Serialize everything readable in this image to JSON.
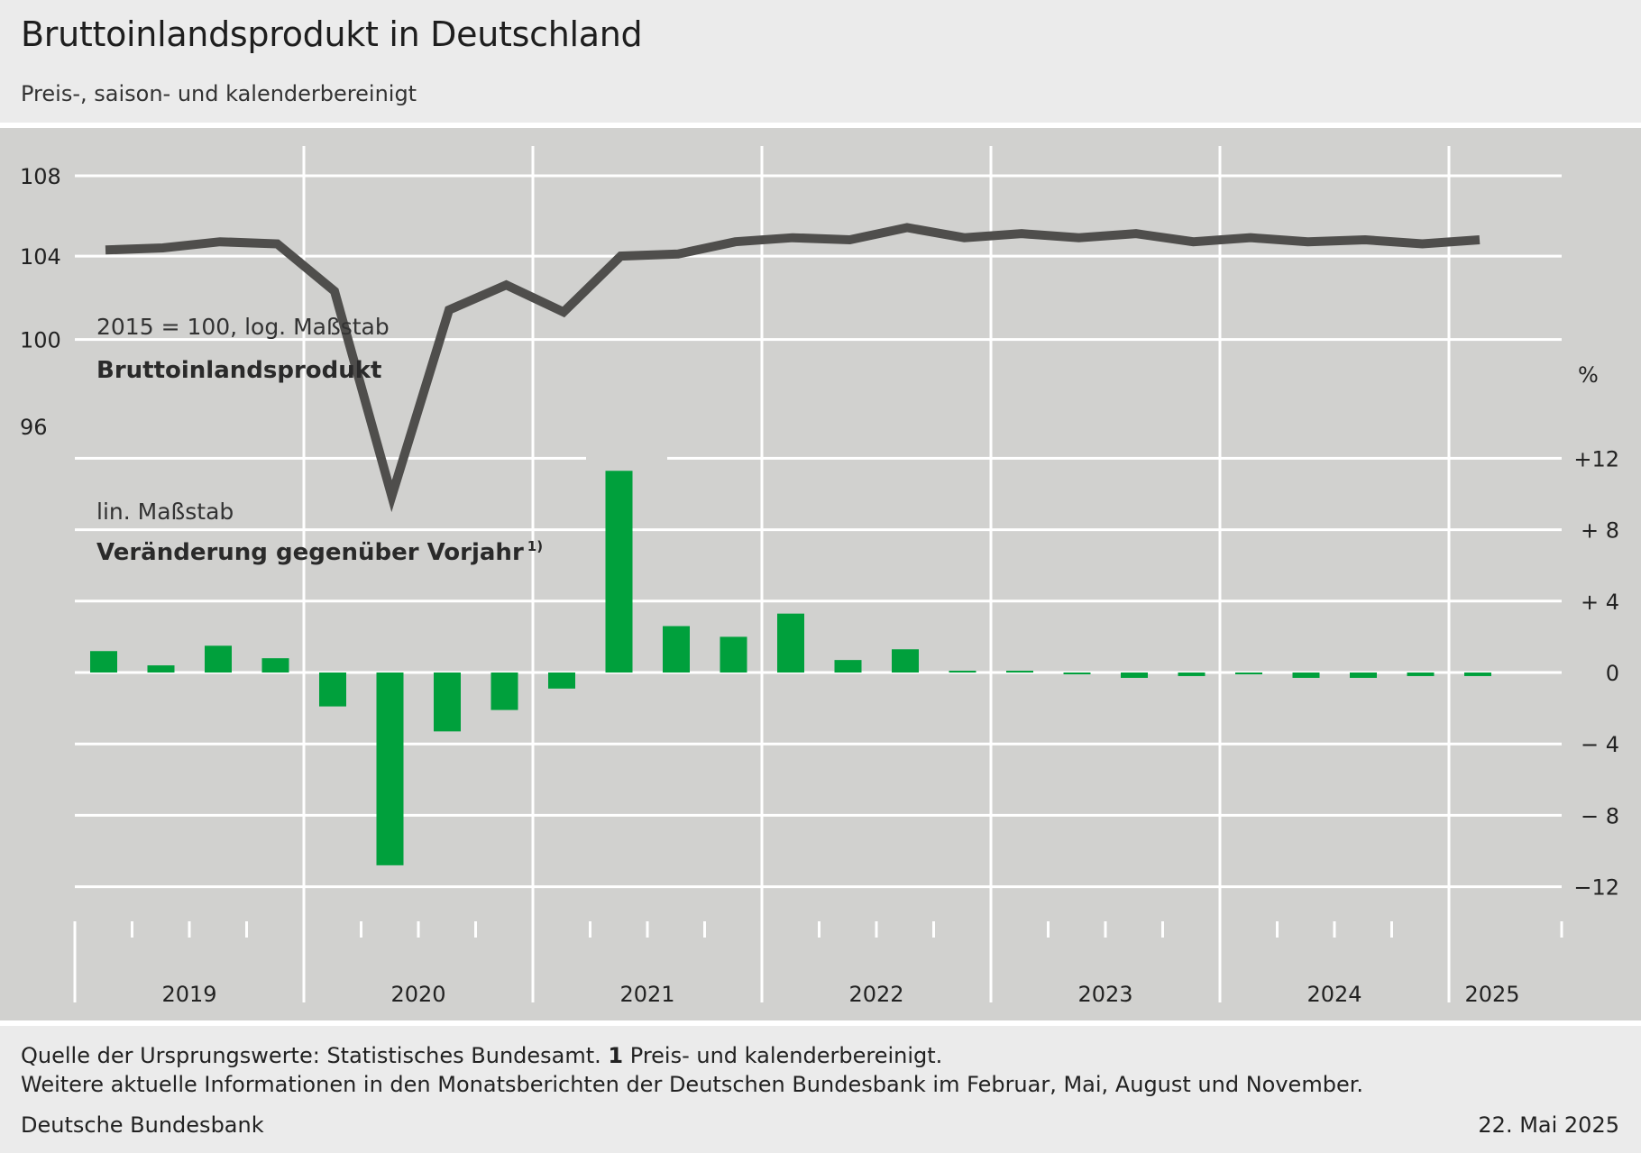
{
  "header": {
    "title": "Bruttoinlandsprodukt in Deutschland",
    "subtitle": "Preis-, saison- und kalenderbereinigt"
  },
  "footer": {
    "source_prefix": "Quelle der Ursprungswerte: Statistisches Bundesamt.",
    "note_number": "1",
    "note_text": "Preis- und kalenderbereinigt.",
    "line2": "Weitere aktuelle Informationen in den Monatsberichten der Deutschen Bundesbank im Februar, Mai, August und November.",
    "publisher": "Deutsche Bundesbank",
    "date": "22. Mai 2025"
  },
  "labels": {
    "upper_scale": "2015 = 100, log. Maßstab",
    "upper_series": "Bruttoinlandsprodukt",
    "lower_scale": "lin. Maßstab",
    "lower_series": "Veränderung gegenüber Vorjahr",
    "lower_series_note": "1)",
    "right_unit": "%"
  },
  "colors": {
    "line": "#4f4e4c",
    "bars": "#00a03c",
    "plot_background": "#d1d1cf",
    "grid": "#ffffff"
  },
  "chart_data": {
    "type": "line+bar",
    "x_years": [
      "2019",
      "2020",
      "2021",
      "2022",
      "2023",
      "2024",
      "2025"
    ],
    "quarters": [
      "2019 Q1",
      "2019 Q2",
      "2019 Q3",
      "2019 Q4",
      "2020 Q1",
      "2020 Q2",
      "2020 Q3",
      "2020 Q4",
      "2021 Q1",
      "2021 Q2",
      "2021 Q3",
      "2021 Q4",
      "2022 Q1",
      "2022 Q2",
      "2022 Q3",
      "2022 Q4",
      "2023 Q1",
      "2023 Q2",
      "2023 Q3",
      "2023 Q4",
      "2024 Q1",
      "2024 Q2",
      "2024 Q3",
      "2024 Q4",
      "2025 Q1"
    ],
    "gdp_index": {
      "scale": "log",
      "ticks": [
        96,
        100,
        104,
        108
      ],
      "values": [
        104.3,
        104.4,
        104.7,
        104.6,
        102.3,
        92.9,
        101.4,
        102.6,
        101.3,
        104.0,
        104.1,
        104.7,
        104.9,
        104.8,
        105.4,
        104.9,
        105.1,
        104.9,
        105.1,
        104.7,
        104.9,
        104.7,
        104.8,
        104.6,
        104.8
      ]
    },
    "yoy_change": {
      "unit": "%",
      "ylim": [
        -12,
        12
      ],
      "ticks": [
        "+12",
        "+ 8",
        "+ 4",
        "0",
        "− 4",
        "− 8",
        "−12"
      ],
      "tick_values": [
        12,
        8,
        4,
        0,
        -4,
        -8,
        -12
      ],
      "values": [
        1.2,
        0.4,
        1.5,
        0.8,
        -1.9,
        -10.8,
        -3.3,
        -2.1,
        -0.9,
        11.3,
        2.6,
        2.0,
        3.3,
        0.7,
        1.3,
        0.1,
        0.1,
        -0.1,
        -0.3,
        -0.2,
        -0.1,
        -0.3,
        -0.3,
        -0.2,
        -0.2
      ]
    },
    "left_ticks": [
      "108",
      "104",
      "100",
      "96"
    ],
    "grid": true
  }
}
